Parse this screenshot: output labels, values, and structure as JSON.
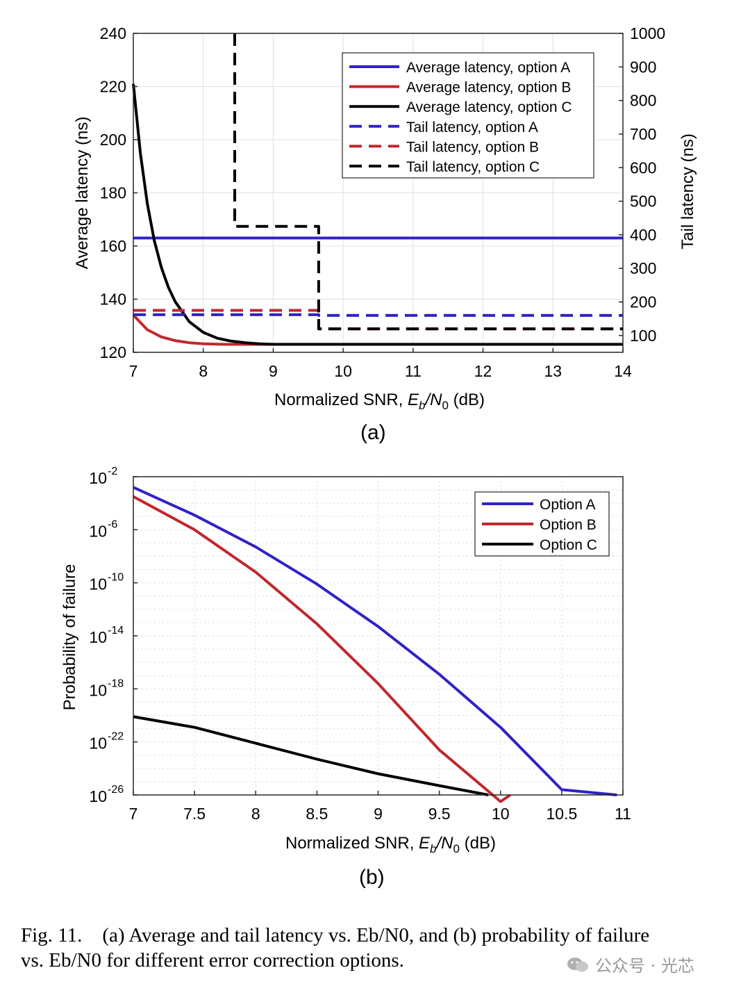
{
  "panel_labels": {
    "a": "(a)",
    "b": "(b)"
  },
  "caption": {
    "line1": "Fig. 11.    (a) Average and tail latency vs. Eb/N0, and (b) probability of failure",
    "line2": "vs. Eb/N0 for different error correction options."
  },
  "watermark": "公众号 · 光芯",
  "colors": {
    "blue": "#2f22c8",
    "red": "#c0282e",
    "black": "#000000"
  },
  "chart_data": [
    {
      "type": "line",
      "xlabel": "Normalized SNR, Eb/N0 (dB)",
      "ylabel": "Average latency (ns)",
      "y2label": "Tail latency (ns)",
      "xlim": [
        7,
        14
      ],
      "ylim": [
        120,
        240
      ],
      "y2lim": [
        50,
        1000
      ],
      "xticks": [
        7,
        8,
        9,
        10,
        11,
        12,
        13,
        14
      ],
      "yticks": [
        120,
        140,
        160,
        180,
        200,
        220,
        240
      ],
      "y2ticks": [
        100,
        200,
        300,
        400,
        500,
        600,
        700,
        800,
        900,
        1000
      ],
      "grid": true,
      "legend_position": "top-right",
      "series": [
        {
          "name": "Average latency, option A",
          "axis": "left",
          "style": "solid",
          "color": "blue",
          "x": [
            7,
            14
          ],
          "y": [
            163,
            163
          ]
        },
        {
          "name": "Average latency, option B",
          "axis": "left",
          "style": "solid",
          "color": "red",
          "x": [
            7,
            7.2,
            7.4,
            7.6,
            7.8,
            8.0,
            8.3,
            8.6,
            9,
            10,
            14
          ],
          "y": [
            134,
            128.5,
            125.8,
            124.4,
            123.6,
            123.2,
            123,
            123,
            123,
            123,
            123
          ]
        },
        {
          "name": "Average latency, option C",
          "axis": "left",
          "style": "solid",
          "color": "black",
          "x": [
            7,
            7.1,
            7.2,
            7.3,
            7.4,
            7.5,
            7.6,
            7.8,
            8.0,
            8.2,
            8.4,
            8.6,
            8.8,
            9,
            10,
            14
          ],
          "y": [
            221,
            195,
            176,
            162,
            152,
            144.5,
            139,
            131.5,
            127.5,
            125.3,
            124.2,
            123.6,
            123.2,
            123,
            123,
            123
          ]
        },
        {
          "name": "Tail latency, option A",
          "axis": "right",
          "style": "dashed",
          "color": "blue",
          "x": [
            7,
            9.65,
            9.65,
            14
          ],
          "y": [
            162,
            162,
            160,
            160
          ]
        },
        {
          "name": "Tail latency, option B",
          "axis": "right",
          "style": "dashed",
          "color": "red",
          "x": [
            7,
            9.65,
            9.65,
            14
          ],
          "y": [
            175,
            175,
            120,
            120
          ]
        },
        {
          "name": "Tail latency, option C",
          "axis": "right",
          "style": "dashed",
          "color": "black",
          "x": [
            8.45,
            8.45,
            9.65,
            9.65,
            14
          ],
          "y": [
            1000,
            425,
            425,
            120,
            120
          ]
        }
      ]
    },
    {
      "type": "line",
      "xlabel": "Normalized SNR, Eb/N0 (dB)",
      "ylabel": "Probability of failure",
      "xlim": [
        7,
        11
      ],
      "ylim_log10": [
        -26,
        -2
      ],
      "y_scale": "log",
      "xticks": [
        7,
        7.5,
        8,
        8.5,
        9,
        9.5,
        10,
        10.5,
        11
      ],
      "xtick_labels": [
        "7",
        "7.5",
        "8",
        "8.5",
        "9",
        "9.5",
        "10",
        "10.5",
        "11"
      ],
      "yticks_log10": [
        -26,
        -22,
        -18,
        -14,
        -10,
        -6,
        -2
      ],
      "ytick_base": "10",
      "ytick_exponents": [
        "-26",
        "-22",
        "-18",
        "-14",
        "-10",
        "-6",
        "-2"
      ],
      "grid": true,
      "legend_position": "top-right",
      "series": [
        {
          "name": "Option A",
          "color": "blue",
          "x": [
            7,
            7.5,
            8,
            8.5,
            9,
            9.5,
            10,
            10.5,
            10.95
          ],
          "log10_y": [
            -2.8,
            -4.9,
            -7.3,
            -10.1,
            -13.3,
            -16.9,
            -20.9,
            -25.6,
            -26
          ]
        },
        {
          "name": "Option B",
          "color": "red",
          "x": [
            7,
            7.5,
            8,
            8.5,
            9,
            9.5,
            10,
            10.08
          ],
          "log10_y": [
            -3.5,
            -6.0,
            -9.2,
            -13.1,
            -17.6,
            -22.6,
            -26.5,
            -26
          ]
        },
        {
          "name": "Option C",
          "color": "black",
          "x": [
            7,
            7.5,
            8,
            8.5,
            9,
            9.5,
            9.9
          ],
          "log10_y": [
            -20.1,
            -20.9,
            -22.1,
            -23.3,
            -24.4,
            -25.3,
            -26
          ]
        }
      ]
    }
  ]
}
